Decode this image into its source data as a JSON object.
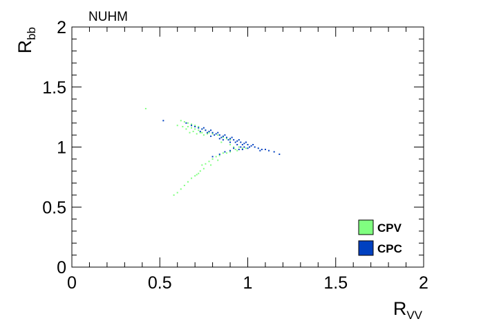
{
  "chart_data": {
    "type": "scatter",
    "title": "NUHM",
    "xlabel": {
      "main": "R",
      "sub": "VV"
    },
    "ylabel": {
      "main": "R",
      "sub": "bb"
    },
    "xlim": [
      0,
      2
    ],
    "ylim": [
      0,
      2
    ],
    "x_ticks": [
      "0",
      "0.5",
      "1",
      "1.5",
      "2"
    ],
    "y_ticks": [
      "0",
      "0.5",
      "1",
      "1.5",
      "2"
    ],
    "grid": false,
    "legend_position": "bottom-right",
    "series": [
      {
        "name": "CPV",
        "color": "#80ff80",
        "points": [
          [
            0.42,
            1.32
          ],
          [
            0.62,
            1.22
          ],
          [
            0.64,
            1.21
          ],
          [
            0.66,
            1.2
          ],
          [
            0.68,
            1.19
          ],
          [
            0.7,
            1.18
          ],
          [
            0.72,
            1.17
          ],
          [
            0.74,
            1.15
          ],
          [
            0.76,
            1.14
          ],
          [
            0.78,
            1.12
          ],
          [
            0.8,
            1.11
          ],
          [
            0.83,
            1.1
          ],
          [
            0.86,
            1.08
          ],
          [
            0.88,
            1.07
          ],
          [
            0.9,
            1.06
          ],
          [
            0.66,
            1.17
          ],
          [
            0.68,
            1.16
          ],
          [
            0.7,
            1.15
          ],
          [
            0.72,
            1.14
          ],
          [
            0.74,
            1.12
          ],
          [
            0.67,
            1.12
          ],
          [
            0.71,
            1.11
          ],
          [
            0.75,
            1.1
          ],
          [
            0.6,
            1.18
          ],
          [
            0.63,
            1.17
          ],
          [
            0.65,
            1.15
          ],
          [
            0.69,
            1.13
          ],
          [
            0.73,
            1.12
          ],
          [
            0.77,
            1.11
          ],
          [
            0.85,
            1.04
          ],
          [
            0.9,
            1.02
          ],
          [
            0.92,
            1.0
          ],
          [
            0.95,
            1.0
          ],
          [
            0.97,
            0.99
          ],
          [
            0.99,
            0.99
          ],
          [
            0.93,
            0.98
          ],
          [
            0.94,
            0.97
          ],
          [
            0.9,
            0.96
          ],
          [
            0.88,
            0.95
          ],
          [
            0.86,
            0.95
          ],
          [
            0.84,
            0.93
          ],
          [
            0.82,
            0.92
          ],
          [
            0.8,
            0.9
          ],
          [
            0.78,
            0.88
          ],
          [
            0.76,
            0.86
          ],
          [
            0.74,
            0.85
          ],
          [
            0.73,
            0.8
          ],
          [
            0.72,
            0.78
          ],
          [
            0.71,
            0.77
          ],
          [
            0.7,
            0.76
          ],
          [
            0.68,
            0.74
          ],
          [
            0.66,
            0.71
          ],
          [
            0.64,
            0.68
          ],
          [
            0.62,
            0.65
          ],
          [
            0.6,
            0.62
          ],
          [
            0.58,
            0.6
          ],
          [
            0.75,
            0.82
          ],
          [
            0.79,
            0.85
          ],
          [
            0.83,
            0.89
          ]
        ]
      },
      {
        "name": "CPC",
        "color": "#0040c0",
        "points": [
          [
            0.52,
            1.22
          ],
          [
            0.65,
            1.2
          ],
          [
            0.68,
            1.18
          ],
          [
            0.7,
            1.17
          ],
          [
            0.72,
            1.16
          ],
          [
            0.74,
            1.15
          ],
          [
            0.76,
            1.14
          ],
          [
            0.78,
            1.13
          ],
          [
            0.8,
            1.12
          ],
          [
            0.82,
            1.11
          ],
          [
            0.84,
            1.1
          ],
          [
            0.86,
            1.09
          ],
          [
            0.88,
            1.08
          ],
          [
            0.9,
            1.07
          ],
          [
            0.92,
            1.06
          ],
          [
            0.94,
            1.05
          ],
          [
            0.96,
            1.04
          ],
          [
            0.98,
            1.03
          ],
          [
            1.0,
            1.02
          ],
          [
            1.02,
            1.01
          ],
          [
            1.04,
            1.0
          ],
          [
            1.06,
            0.99
          ],
          [
            1.08,
            0.98
          ],
          [
            1.1,
            0.98
          ],
          [
            1.12,
            0.97
          ],
          [
            1.15,
            0.96
          ],
          [
            1.18,
            0.94
          ],
          [
            0.77,
            1.12
          ],
          [
            0.81,
            1.1
          ],
          [
            0.85,
            1.08
          ],
          [
            0.89,
            1.06
          ],
          [
            0.93,
            1.04
          ],
          [
            0.97,
            1.02
          ],
          [
            1.01,
            1.0
          ],
          [
            0.79,
            1.14
          ],
          [
            0.83,
            1.12
          ],
          [
            0.87,
            1.1
          ],
          [
            0.91,
            1.08
          ],
          [
            0.95,
            1.06
          ],
          [
            0.99,
            1.04
          ],
          [
            1.03,
            1.02
          ],
          [
            0.86,
            1.06
          ],
          [
            0.9,
            1.04
          ],
          [
            0.94,
            1.02
          ],
          [
            0.98,
            1.0
          ],
          [
            0.75,
            1.16
          ],
          [
            0.79,
            1.09
          ],
          [
            0.84,
            1.07
          ],
          [
            0.96,
            1.0
          ],
          [
            1.0,
            0.99
          ],
          [
            0.92,
            0.99
          ],
          [
            0.95,
            0.98
          ],
          [
            0.9,
            0.97
          ],
          [
            0.87,
            0.96
          ],
          [
            0.84,
            0.94
          ],
          [
            0.8,
            0.92
          ],
          [
            1.07,
            0.97
          ],
          [
            0.73,
            1.13
          ],
          [
            0.97,
            0.98
          ]
        ]
      }
    ]
  }
}
